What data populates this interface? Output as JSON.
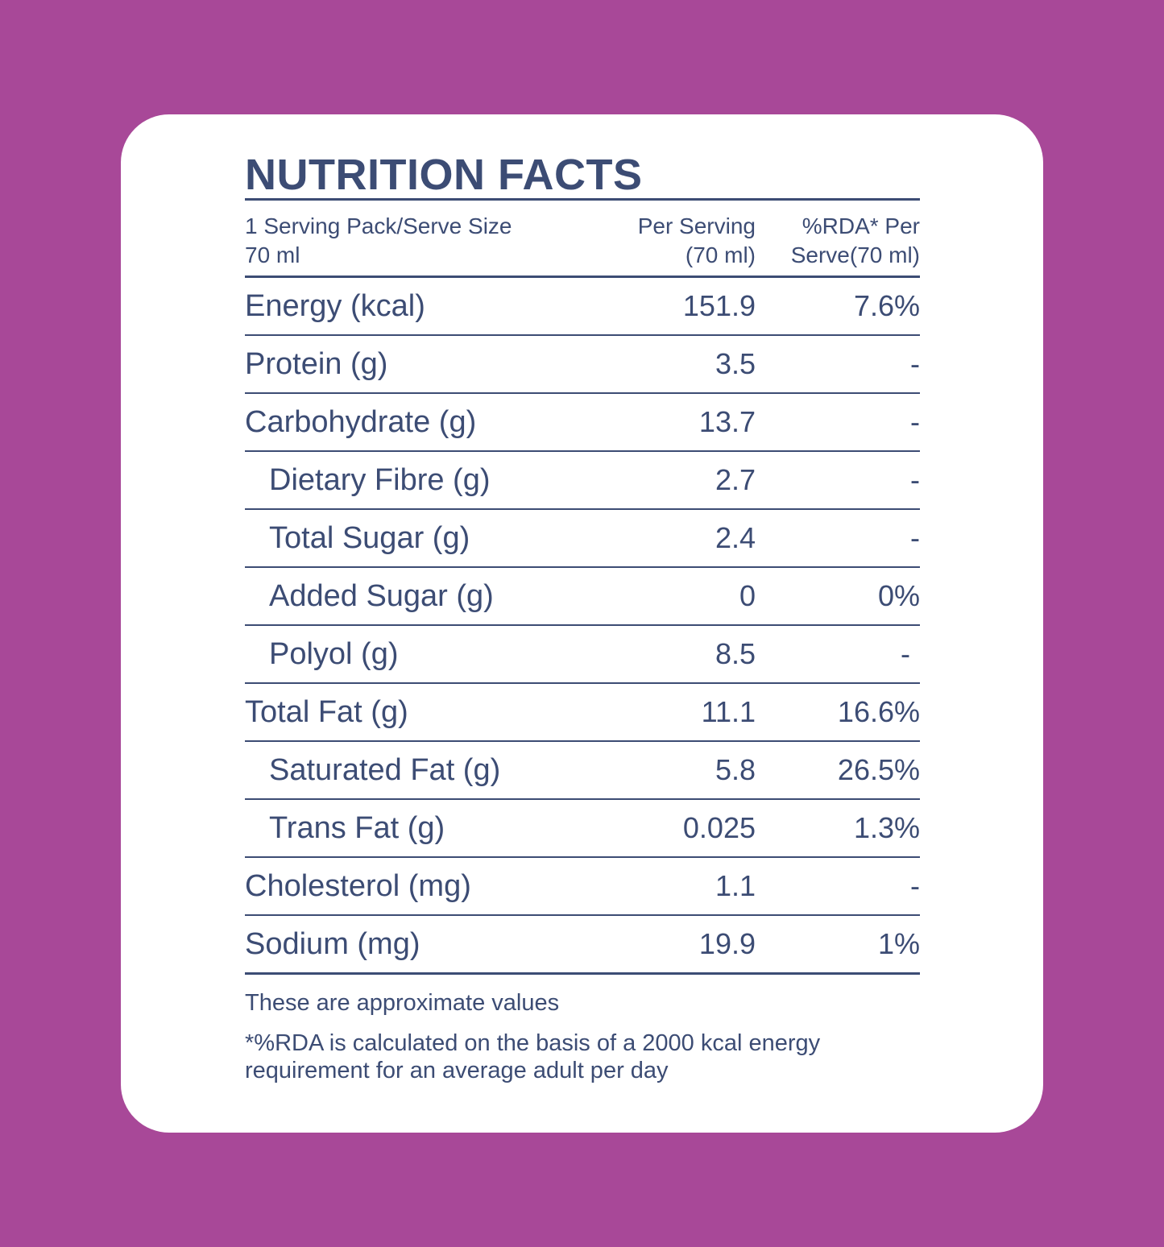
{
  "title": "NUTRITION FACTS",
  "header": {
    "col1_line1": "1 Serving Pack/Serve Size",
    "col1_line2": "70 ml",
    "col2_line1": "Per Serving",
    "col2_line2": "(70 ml)",
    "col3_line1": "%RDA* Per",
    "col3_line2": "Serve(70 ml)"
  },
  "rows": [
    {
      "name": "Energy (kcal)",
      "per_serving": "151.9",
      "rda": "7.6%",
      "indent": false
    },
    {
      "name": "Protein (g)",
      "per_serving": "3.5",
      "rda": "-",
      "indent": false
    },
    {
      "name": "Carbohydrate (g)",
      "per_serving": "13.7",
      "rda": "-",
      "indent": false
    },
    {
      "name": "Dietary Fibre (g)",
      "per_serving": "2.7",
      "rda": "-",
      "indent": true
    },
    {
      "name": "Total Sugar (g)",
      "per_serving": "2.4",
      "rda": "-",
      "indent": true
    },
    {
      "name": "Added Sugar (g)",
      "per_serving": "0",
      "rda": "0%",
      "indent": true
    },
    {
      "name": "Polyol (g)",
      "per_serving": "8.5",
      "rda": "-",
      "indent": true
    },
    {
      "name": "Total Fat (g)",
      "per_serving": "11.1",
      "rda": "16.6%",
      "indent": false
    },
    {
      "name": "Saturated Fat (g)",
      "per_serving": "5.8",
      "rda": "26.5%",
      "indent": true
    },
    {
      "name": "Trans Fat (g)",
      "per_serving": "0.025",
      "rda": "1.3%",
      "indent": true
    },
    {
      "name": "Cholesterol (mg)",
      "per_serving": "1.1",
      "rda": "-",
      "indent": false
    },
    {
      "name": "Sodium (mg)",
      "per_serving": "19.9",
      "rda": "1%",
      "indent": false
    }
  ],
  "notes": {
    "approx": "These are approximate values",
    "rda_basis": "*%RDA is calculated on the basis of a 2000 kcal energy requirement for an average adult per day"
  },
  "colors": {
    "background": "#a84898",
    "card": "#ffffff",
    "text": "#3c4c74"
  }
}
